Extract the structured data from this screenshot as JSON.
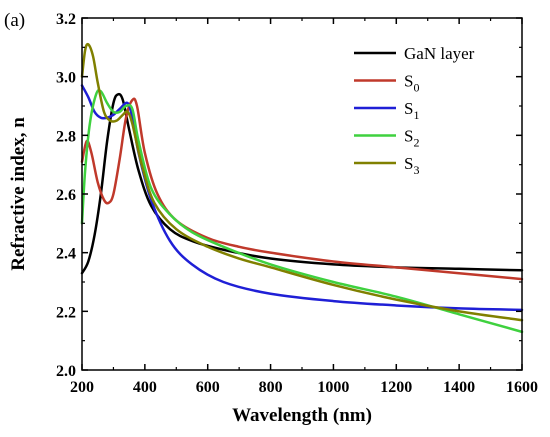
{
  "panel_label": "(a)",
  "chart_data": {
    "type": "line",
    "title": "",
    "xlabel": "Wavelength (nm)",
    "ylabel": "Refractive index, n",
    "xlim": [
      200,
      1600
    ],
    "ylim": [
      2.0,
      3.2
    ],
    "xticks": [
      200,
      400,
      600,
      800,
      1000,
      1200,
      1400,
      1600
    ],
    "yticks": [
      2.0,
      2.2,
      2.4,
      2.6,
      2.8,
      3.0,
      3.2
    ],
    "xtick_labels": [
      "200",
      "400",
      "600",
      "800",
      "1000",
      "1200",
      "1400",
      "1600"
    ],
    "ytick_labels": [
      "2.0",
      "2.2",
      "2.4",
      "2.6",
      "2.8",
      "3.0",
      "3.2"
    ],
    "grid": false,
    "legend_position": "top-right",
    "series": [
      {
        "name": "GaN layer",
        "legend_main": "GaN layer",
        "legend_sub": "",
        "color": "#000000",
        "points": [
          [
            200,
            2.33
          ],
          [
            220,
            2.37
          ],
          [
            240,
            2.46
          ],
          [
            260,
            2.6
          ],
          [
            280,
            2.78
          ],
          [
            300,
            2.91
          ],
          [
            315,
            2.94
          ],
          [
            330,
            2.92
          ],
          [
            350,
            2.82
          ],
          [
            380,
            2.68
          ],
          [
            420,
            2.56
          ],
          [
            480,
            2.48
          ],
          [
            550,
            2.44
          ],
          [
            650,
            2.41
          ],
          [
            800,
            2.38
          ],
          [
            1000,
            2.36
          ],
          [
            1200,
            2.35
          ],
          [
            1400,
            2.345
          ],
          [
            1600,
            2.34
          ]
        ]
      },
      {
        "name": "S0",
        "legend_main": "S",
        "legend_sub": "0",
        "color": "#c0392b",
        "points": [
          [
            200,
            2.71
          ],
          [
            215,
            2.78
          ],
          [
            230,
            2.74
          ],
          [
            250,
            2.64
          ],
          [
            270,
            2.58
          ],
          [
            285,
            2.57
          ],
          [
            300,
            2.6
          ],
          [
            320,
            2.72
          ],
          [
            340,
            2.86
          ],
          [
            360,
            2.92
          ],
          [
            375,
            2.9
          ],
          [
            400,
            2.74
          ],
          [
            440,
            2.6
          ],
          [
            500,
            2.51
          ],
          [
            600,
            2.45
          ],
          [
            700,
            2.42
          ],
          [
            800,
            2.4
          ],
          [
            1000,
            2.37
          ],
          [
            1200,
            2.35
          ],
          [
            1400,
            2.33
          ],
          [
            1600,
            2.31
          ]
        ]
      },
      {
        "name": "S1",
        "legend_main": "S",
        "legend_sub": "1",
        "color": "#1f1fd6",
        "points": [
          [
            200,
            2.97
          ],
          [
            220,
            2.93
          ],
          [
            240,
            2.88
          ],
          [
            260,
            2.86
          ],
          [
            280,
            2.86
          ],
          [
            300,
            2.87
          ],
          [
            320,
            2.89
          ],
          [
            345,
            2.91
          ],
          [
            360,
            2.86
          ],
          [
            380,
            2.74
          ],
          [
            420,
            2.58
          ],
          [
            480,
            2.44
          ],
          [
            550,
            2.36
          ],
          [
            650,
            2.3
          ],
          [
            800,
            2.26
          ],
          [
            1000,
            2.235
          ],
          [
            1200,
            2.22
          ],
          [
            1400,
            2.21
          ],
          [
            1600,
            2.205
          ]
        ]
      },
      {
        "name": "S2",
        "legend_main": "S",
        "legend_sub": "2",
        "color": "#3fd13f",
        "points": [
          [
            200,
            2.5
          ],
          [
            210,
            2.68
          ],
          [
            225,
            2.84
          ],
          [
            245,
            2.94
          ],
          [
            260,
            2.95
          ],
          [
            280,
            2.91
          ],
          [
            300,
            2.88
          ],
          [
            320,
            2.88
          ],
          [
            340,
            2.9
          ],
          [
            360,
            2.89
          ],
          [
            380,
            2.78
          ],
          [
            420,
            2.62
          ],
          [
            480,
            2.53
          ],
          [
            550,
            2.47
          ],
          [
            650,
            2.42
          ],
          [
            800,
            2.36
          ],
          [
            1000,
            2.3
          ],
          [
            1200,
            2.25
          ],
          [
            1400,
            2.19
          ],
          [
            1600,
            2.13
          ]
        ]
      },
      {
        "name": "S3",
        "legend_main": "S",
        "legend_sub": "3",
        "color": "#808000",
        "points": [
          [
            200,
            3.0
          ],
          [
            210,
            3.09
          ],
          [
            220,
            3.11
          ],
          [
            235,
            3.07
          ],
          [
            250,
            2.98
          ],
          [
            270,
            2.88
          ],
          [
            290,
            2.85
          ],
          [
            310,
            2.85
          ],
          [
            330,
            2.87
          ],
          [
            345,
            2.88
          ],
          [
            360,
            2.84
          ],
          [
            390,
            2.7
          ],
          [
            430,
            2.57
          ],
          [
            500,
            2.48
          ],
          [
            600,
            2.42
          ],
          [
            700,
            2.38
          ],
          [
            800,
            2.35
          ],
          [
            1000,
            2.29
          ],
          [
            1200,
            2.24
          ],
          [
            1400,
            2.2
          ],
          [
            1600,
            2.17
          ]
        ]
      }
    ]
  }
}
